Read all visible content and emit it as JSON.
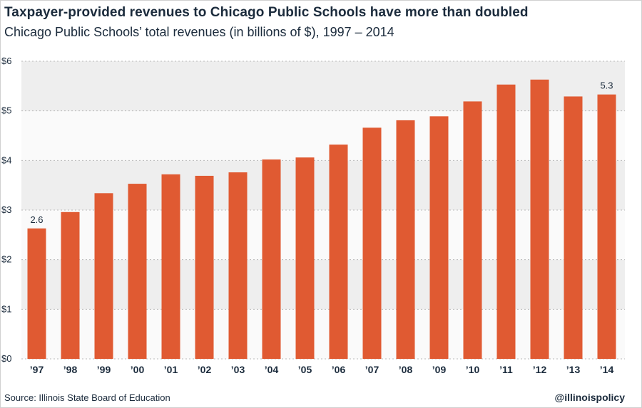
{
  "header": {
    "title": "Taxpayer-provided revenues to Chicago Public Schools have more than doubled",
    "subtitle": "Chicago Public Schools’ total revenues (in billions of $), 1997 – 2014"
  },
  "footer": {
    "source": "Source: Illinois State Board of Education",
    "handle": "@illinoispolicy"
  },
  "colors": {
    "bar": "#e05a32",
    "band_dark": "#eeeeee",
    "band_light": "#fafafa",
    "grid": "#b9b9b9",
    "text": "#1b2b3c"
  },
  "chart_data": {
    "type": "bar",
    "categories": [
      "’97",
      "’98",
      "’99",
      "’00",
      "’01",
      "’02",
      "’03",
      "’04",
      "’05",
      "’06",
      "’07",
      "’08",
      "’09",
      "’10",
      "’11",
      "’12",
      "’13",
      "’14"
    ],
    "values": [
      2.63,
      2.96,
      3.34,
      3.53,
      3.72,
      3.69,
      3.76,
      4.02,
      4.06,
      4.32,
      4.66,
      4.81,
      4.89,
      5.19,
      5.53,
      5.63,
      5.29,
      5.33
    ],
    "data_labels": [
      {
        "index": 0,
        "text": "2.6"
      },
      {
        "index": 17,
        "text": "5.3"
      }
    ],
    "y_ticks": [
      {
        "value": 0,
        "label": "$0"
      },
      {
        "value": 1,
        "label": "$1"
      },
      {
        "value": 2,
        "label": "$2"
      },
      {
        "value": 3,
        "label": "$3"
      },
      {
        "value": 4,
        "label": "$4"
      },
      {
        "value": 5,
        "label": "$5"
      },
      {
        "value": 6,
        "label": "$6"
      }
    ],
    "ylim": [
      0,
      6
    ],
    "xlabel": "",
    "ylabel": "",
    "grid": true,
    "grid_style": "dotted"
  }
}
